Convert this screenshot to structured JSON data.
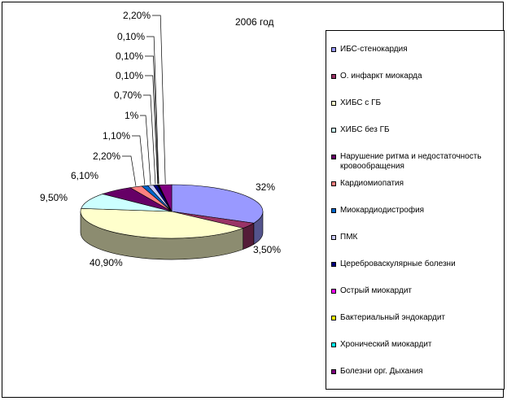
{
  "title": "2006 год",
  "legend": [
    {
      "label": "ИБС-стенокардия",
      "color": "#9999ff"
    },
    {
      "label": "О. инфаркт миокарда",
      "color": "#993366"
    },
    {
      "label": "ХИБС с ГБ",
      "color": "#ffffcc"
    },
    {
      "label": "ХИБС без ГБ",
      "color": "#ccffff"
    },
    {
      "label": "Нарушение ритма и недостаточность кровообращения",
      "color": "#660066"
    },
    {
      "label": "Кардиомиопатия",
      "color": "#ff8080"
    },
    {
      "label": "Миокардиодистрофия",
      "color": "#0066cc"
    },
    {
      "label": "ПМК",
      "color": "#ccccff"
    },
    {
      "label": "Цереброваскулярные болезни",
      "color": "#000080"
    },
    {
      "label": "Острый миокардит",
      "color": "#ff00ff"
    },
    {
      "label": "Бактериальный эндокардит",
      "color": "#ffff00"
    },
    {
      "label": "Хронический миокардит",
      "color": "#00ffff"
    },
    {
      "label": "Болезни орг. Дыхания",
      "color": "#800080"
    }
  ],
  "chart_data": {
    "type": "pie",
    "title": "2006 год",
    "slices": [
      {
        "label": "ИБС-стенокардия",
        "value": 32,
        "display": "32%"
      },
      {
        "label": "О. инфаркт миокарда",
        "value": 3.5,
        "display": "3,50%"
      },
      {
        "label": "ХИБС с ГБ",
        "value": 40.9,
        "display": "40,90%"
      },
      {
        "label": "ХИБС без ГБ",
        "value": 9.5,
        "display": "9,50%"
      },
      {
        "label": "Нарушение ритма и недостаточность кровообращения",
        "value": 6.1,
        "display": "6,10%"
      },
      {
        "label": "Кардиомиопатия",
        "value": 2.2,
        "display": "2,20%"
      },
      {
        "label": "Миокардиодистрофия",
        "value": 1.1,
        "display": "1,10%"
      },
      {
        "label": "ПМК",
        "value": 1,
        "display": "1%"
      },
      {
        "label": "Цереброваскулярные болезни",
        "value": 0.7,
        "display": "0,70%"
      },
      {
        "label": "Острый миокардит",
        "value": 0.1,
        "display": "0,10%"
      },
      {
        "label": "Бактериальный эндокардит",
        "value": 0.1,
        "display": "0,10%"
      },
      {
        "label": "Хронический миокардит",
        "value": 0.1,
        "display": "0,10%"
      },
      {
        "label": "Болезни орг. Дыхания",
        "value": 2.2,
        "display": "2,20%"
      }
    ],
    "legend_position": "right",
    "style": "3d-pie"
  }
}
